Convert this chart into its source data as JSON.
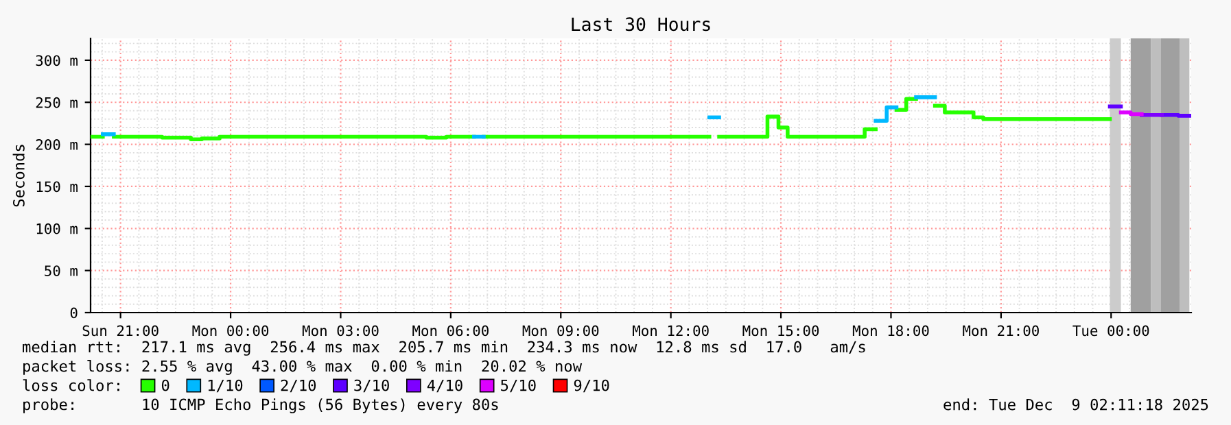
{
  "chart_data": {
    "type": "line",
    "title": "Last 30 Hours",
    "ylabel": "Seconds",
    "series": [
      {
        "name": "0",
        "color": "#26ff00",
        "x": [
          "2025-12-07T20:11",
          "2025-12-07T20:31",
          null,
          "2025-12-07T20:49",
          "2025-12-07T22:08",
          "2025-12-07T22:08",
          "2025-12-07T22:55",
          "2025-12-07T22:55",
          "2025-12-07T23:13",
          "2025-12-07T23:13",
          "2025-12-07T23:42",
          "2025-12-07T23:42",
          "2025-12-08T05:20",
          "2025-12-08T05:20",
          "2025-12-08T05:53",
          "2025-12-08T05:53",
          "2025-12-08T06:38",
          null,
          "2025-12-08T06:54",
          "2025-12-08T13:03",
          null,
          "2025-12-08T13:19",
          "2025-12-08T14:38",
          "2025-12-08T14:38",
          "2025-12-08T14:56",
          "2025-12-08T14:56",
          "2025-12-08T15:11",
          "2025-12-08T15:11",
          "2025-12-08T17:17",
          "2025-12-08T17:17",
          "2025-12-08T17:35",
          null,
          "2025-12-08T18:09",
          "2025-12-08T18:25",
          "2025-12-08T18:25",
          "2025-12-08T18:41",
          null,
          "2025-12-08T19:12",
          "2025-12-08T19:28",
          "2025-12-08T19:28",
          "2025-12-08T20:15",
          "2025-12-08T20:15",
          "2025-12-08T20:31",
          "2025-12-08T20:31",
          "2025-12-08T23:58"
        ],
        "values": [
          209,
          209,
          null,
          209,
          209,
          208,
          208,
          206,
          206,
          207,
          207,
          209,
          209,
          208,
          208,
          209,
          209,
          null,
          209,
          209,
          null,
          209,
          209,
          233,
          233,
          220,
          220,
          209,
          209,
          218,
          218,
          null,
          241,
          241,
          254,
          254,
          null,
          246,
          246,
          238,
          238,
          232,
          232,
          230,
          230
        ]
      },
      {
        "name": "1/10",
        "color": "#00b8ff",
        "x": [
          "2025-12-07T20:31",
          "2025-12-07T20:49",
          null,
          "2025-12-08T06:38",
          "2025-12-08T06:54",
          null,
          "2025-12-08T13:03",
          "2025-12-08T13:19",
          null,
          "2025-12-08T17:35",
          "2025-12-08T17:53",
          "2025-12-08T17:53",
          "2025-12-08T18:09",
          null,
          "2025-12-08T18:41",
          "2025-12-08T19:12"
        ],
        "values": [
          212,
          212,
          null,
          209,
          209,
          null,
          232,
          232,
          null,
          228,
          228,
          244,
          244,
          null,
          256,
          256
        ]
      },
      {
        "name": "2/10",
        "color": "#0059ff"
      },
      {
        "name": "3/10",
        "color": "#5e00ff",
        "x": [
          "2025-12-08T23:58",
          "2025-12-09T00:16",
          null,
          "2025-12-09T01:23",
          "2025-12-09T01:50",
          "2025-12-09T01:50",
          "2025-12-09T02:08"
        ],
        "values": [
          245,
          245,
          null,
          235,
          235,
          234,
          234
        ]
      },
      {
        "name": "4/10",
        "color": "#7e00ff",
        "x": [
          "2025-12-09T00:50",
          "2025-12-09T01:23"
        ],
        "values": [
          235,
          235
        ]
      },
      {
        "name": "5/10",
        "color": "#dd00ff",
        "x": [
          "2025-12-09T00:16",
          "2025-12-09T00:32",
          "2025-12-09T00:32",
          "2025-12-09T00:50"
        ],
        "values": [
          238,
          238,
          236,
          236
        ]
      },
      {
        "name": "9/10",
        "color": "#ff0000"
      }
    ],
    "bands": [
      {
        "axis": "x",
        "from": "2025-12-08T23:58",
        "to": "2025-12-09T00:16",
        "color": "#cccccc"
      },
      {
        "axis": "x",
        "from": "2025-12-09T00:32",
        "to": "2025-12-09T01:05",
        "color": "#a0a0a0"
      },
      {
        "axis": "x",
        "from": "2025-12-09T01:05",
        "to": "2025-12-09T01:21",
        "color": "#bebebe"
      },
      {
        "axis": "x",
        "from": "2025-12-09T01:21",
        "to": "2025-12-09T01:52",
        "color": "#a0a0a0"
      },
      {
        "axis": "x",
        "from": "2025-12-09T01:52",
        "to": "2025-12-09T02:08",
        "color": "#bebebe"
      }
    ],
    "xlim": [
      "2025-12-07T20:11",
      "2025-12-09T02:11"
    ],
    "ylim": [
      0,
      326
    ],
    "xticks": [
      {
        "value": "2025-12-07T21:00",
        "label": "Sun 21:00"
      },
      {
        "value": "2025-12-08T00:00",
        "label": "Mon 00:00"
      },
      {
        "value": "2025-12-08T03:00",
        "label": "Mon 03:00"
      },
      {
        "value": "2025-12-08T06:00",
        "label": "Mon 06:00"
      },
      {
        "value": "2025-12-08T09:00",
        "label": "Mon 09:00"
      },
      {
        "value": "2025-12-08T12:00",
        "label": "Mon 12:00"
      },
      {
        "value": "2025-12-08T15:00",
        "label": "Mon 15:00"
      },
      {
        "value": "2025-12-08T18:00",
        "label": "Mon 18:00"
      },
      {
        "value": "2025-12-08T21:00",
        "label": "Mon 21:00"
      },
      {
        "value": "2025-12-09T00:00",
        "label": "Tue 00:00"
      }
    ],
    "yticks": [
      0,
      {
        "value": 50,
        "label": "50 m"
      },
      {
        "value": 100,
        "label": "100 m"
      },
      {
        "value": 150,
        "label": "150 m"
      },
      {
        "value": 200,
        "label": "200 m"
      },
      {
        "value": 250,
        "label": "250 m"
      },
      {
        "value": 300,
        "label": "300 m"
      }
    ],
    "grid": true,
    "legend": "bottom",
    "legend_title": "loss color:",
    "annotations": [
      "median rtt:  217.1 ms avg  256.4 ms max  205.7 ms min  234.3 ms now  12.8 ms sd  17.0   am/s",
      "packet loss: 2.55 % avg  43.00 % max  0.00 % min  20.02 % now",
      "probe:       10 ICMP Echo Pings (56 Bytes) every 80s",
      "end: Tue Dec  9 02:11:18 2025"
    ]
  }
}
